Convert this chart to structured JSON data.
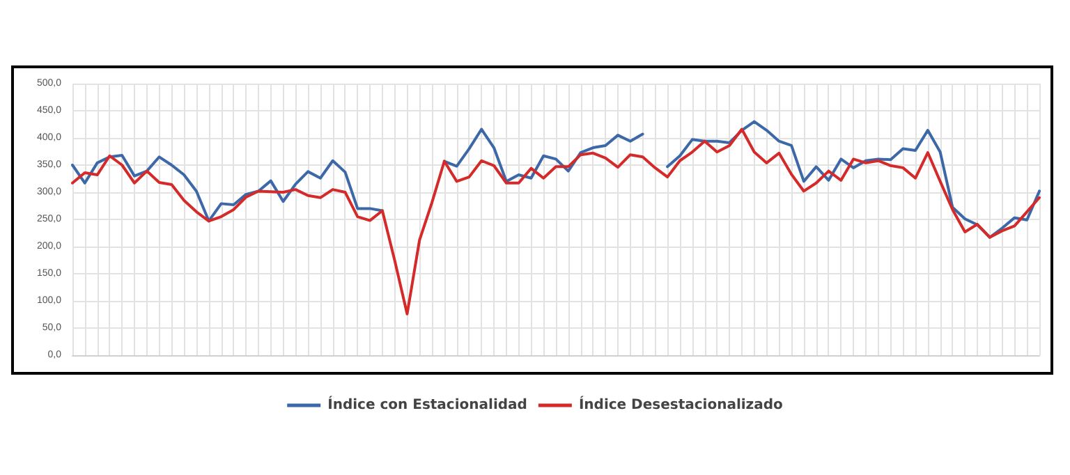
{
  "chart_data": {
    "type": "line",
    "categories": [
      null,
      null,
      null,
      null,
      null,
      null,
      null,
      null,
      null,
      null,
      null,
      null,
      null,
      null,
      null,
      null,
      null,
      null,
      null,
      null,
      null,
      null,
      null,
      null,
      null,
      null,
      null,
      null,
      null,
      null,
      null,
      null,
      null,
      null,
      null,
      null,
      null,
      null,
      null,
      null,
      null,
      null,
      null,
      null,
      null,
      null,
      null,
      null,
      null,
      null,
      null,
      null,
      null,
      null,
      null,
      null,
      null,
      null,
      null,
      null,
      null,
      null,
      null,
      null,
      null,
      null,
      null,
      null,
      null,
      null,
      null,
      null,
      null,
      null,
      null,
      null,
      null,
      null,
      null
    ],
    "series": [
      {
        "name": "Índice con Estacionalidad",
        "color": "#3d68a8",
        "values": [
          350,
          317,
          354,
          365,
          368,
          330,
          339,
          365,
          350,
          332,
          302,
          247,
          279,
          277,
          296,
          302,
          321,
          283,
          315,
          338,
          326,
          358,
          337,
          270,
          270,
          266,
          null,
          null,
          null,
          null,
          357,
          348,
          380,
          416,
          382,
          320,
          332,
          326,
          367,
          361,
          339,
          373,
          382,
          386,
          405,
          394,
          407,
          null,
          347,
          367,
          397,
          394,
          394,
          391,
          414,
          430,
          414,
          394,
          386,
          320,
          347,
          322,
          361,
          345,
          358,
          361,
          360,
          380,
          377,
          414,
          374,
          272,
          251,
          240,
          217,
          234,
          253,
          249,
          302
        ]
      },
      {
        "name": "Índice Desestacionalizado",
        "color": "#d42a2a",
        "values": [
          317,
          336,
          332,
          367,
          350,
          317,
          339,
          318,
          314,
          285,
          264,
          247,
          255,
          268,
          291,
          302,
          301,
          300,
          305,
          294,
          290,
          305,
          300,
          255,
          248,
          266,
          174,
          76,
          212,
          281,
          357,
          320,
          328,
          358,
          349,
          317,
          317,
          344,
          326,
          347,
          347,
          369,
          372,
          363,
          346,
          369,
          365,
          345,
          328,
          358,
          374,
          394,
          374,
          386,
          416,
          374,
          354,
          372,
          333,
          302,
          317,
          339,
          322,
          361,
          354,
          358,
          349,
          345,
          326,
          373,
          320,
          268,
          227,
          241,
          217,
          229,
          238,
          264,
          290
        ]
      }
    ],
    "ylim": [
      0,
      500
    ],
    "yticks": [
      {
        "value": 0,
        "label": "0,0"
      },
      {
        "value": 50,
        "label": "50,0"
      },
      {
        "value": 100,
        "label": "100,0"
      },
      {
        "value": 150,
        "label": "150,0"
      },
      {
        "value": 200,
        "label": "200,0"
      },
      {
        "value": 250,
        "label": "250,0"
      },
      {
        "value": 300,
        "label": "300,0"
      },
      {
        "value": 350,
        "label": "350,0"
      },
      {
        "value": 400,
        "label": "400,0"
      },
      {
        "value": 450,
        "label": "450,0"
      },
      {
        "value": 500,
        "label": "500,0"
      }
    ],
    "grid": true,
    "legend": "bottom",
    "marker": "none",
    "line_style": "solid"
  }
}
